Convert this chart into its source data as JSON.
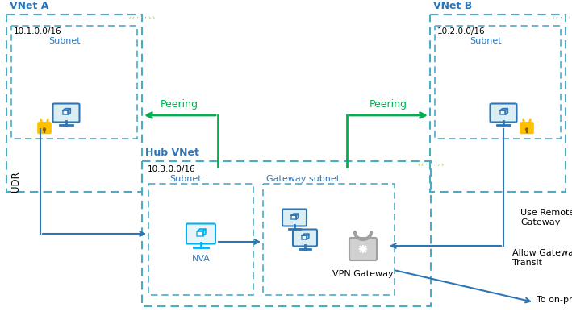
{
  "fig_width": 7.09,
  "fig_height": 3.97,
  "bg_color": "#ffffff",
  "blue_text": "#2E75B6",
  "light_blue": "#00B0F0",
  "green": "#00B050",
  "dashed_blue": "#4BACC6",
  "arrow_blue": "#2E75B6",
  "gold": "#FFC000",
  "gray_lock": "#A0A0A0",
  "gray_lock_fill": "#D0D0D0",
  "green_chevron": "#92D050",
  "vnet_a_label": "VNet A",
  "vnet_b_label": "VNet B",
  "hub_vnet_label": "Hub VNet",
  "subnet_a_cidr": "10.1.0.0/16",
  "subnet_a_label": "Subnet",
  "subnet_b_cidr": "10.2.0.0/16",
  "subnet_b_label": "Subnet",
  "hub_cidr": "10.3.0.0/16",
  "hub_subnet_label": "Subnet",
  "gateway_subnet_label": "Gateway subnet",
  "nva_label": "NVA",
  "vpn_label": "VPN Gateway",
  "udr_label": "UDR",
  "peering_left_label": "Peering",
  "peering_right_label": "Peering",
  "use_remote_gw_label": "Use Remote\nGateway",
  "allow_gw_transit_label": "Allow Gateway\nTransit",
  "to_on_premises_label": "To on-premises"
}
